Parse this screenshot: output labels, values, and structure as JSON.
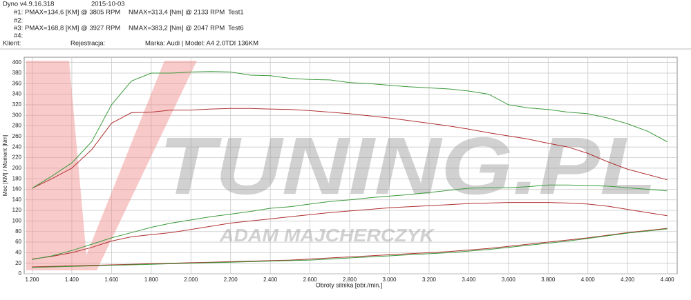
{
  "header": {
    "app": "Dyno v4.9.16.318",
    "date": "2015-10-03",
    "runs": [
      {
        "id": "#1:",
        "pmax": "PMAX=134,6 [KM] @ 3805 RPM",
        "nmax": "NMAX=313,4 [Nm] @ 2133 RPM",
        "test": "Test1"
      },
      {
        "id": "#2:"
      },
      {
        "id": "#3:",
        "pmax": "PMAX=168,8 [KM] @ 3927 RPM",
        "nmax": "NMAX=383,2 [Nm] @ 2047 RPM",
        "test": "Test6"
      },
      {
        "id": "#4:"
      }
    ],
    "client": "Klient:",
    "registration": "Rejestracja:",
    "vehicle": "Marka: Audi | Model: A4 2.0TDI 136KM"
  },
  "watermark": {
    "brand": "TUNING.PL",
    "author": "ADAM MAJCHERCZYK"
  },
  "chart_data": {
    "type": "line",
    "y_label": "Moc [KM] / Moment [Nm]",
    "x_label": "Obroty silnika [obr./min.]",
    "xlim": [
      1160,
      4450
    ],
    "ylim": [
      0,
      410
    ],
    "grid": true,
    "xticks": [
      {
        "value": 1200,
        "label": "1.200"
      },
      {
        "value": 1400,
        "label": "1.400"
      },
      {
        "value": 1600,
        "label": "1.600"
      },
      {
        "value": 1800,
        "label": "1.800"
      },
      {
        "value": 2000,
        "label": "2.000"
      },
      {
        "value": 2200,
        "label": "2.200"
      },
      {
        "value": 2400,
        "label": "2.400"
      },
      {
        "value": 2600,
        "label": "2.600"
      },
      {
        "value": 2800,
        "label": "2.800"
      },
      {
        "value": 3000,
        "label": "3.000"
      },
      {
        "value": 3200,
        "label": "3.200"
      },
      {
        "value": 3400,
        "label": "3.400"
      },
      {
        "value": 3600,
        "label": "3.600"
      },
      {
        "value": 3800,
        "label": "3.800"
      },
      {
        "value": 4000,
        "label": "4.000"
      },
      {
        "value": 4200,
        "label": "4.200"
      },
      {
        "value": 4400,
        "label": "4.400"
      }
    ],
    "yticks": [
      0,
      20,
      40,
      60,
      80,
      100,
      120,
      140,
      160,
      180,
      200,
      220,
      240,
      260,
      280,
      300,
      320,
      340,
      360,
      380,
      400
    ],
    "x": [
      1200,
      1300,
      1400,
      1500,
      1600,
      1700,
      1800,
      1900,
      2000,
      2100,
      2200,
      2300,
      2400,
      2500,
      2600,
      2700,
      2800,
      2900,
      3000,
      3100,
      3200,
      3300,
      3400,
      3500,
      3600,
      3700,
      3800,
      3900,
      4000,
      4100,
      4200,
      4300,
      4400
    ],
    "series": [
      {
        "color": "#b03030",
        "values": [
          162,
          180,
          200,
          235,
          285,
          305,
          306,
          310,
          310,
          312,
          313,
          313,
          312,
          311,
          309,
          306,
          303,
          299,
          295,
          290,
          285,
          280,
          274,
          267,
          261,
          255,
          247,
          240,
          228,
          212,
          198,
          188,
          178
        ]
      },
      {
        "color": "#3a9a3a",
        "values": [
          162,
          185,
          210,
          250,
          320,
          365,
          380,
          380,
          382,
          383,
          382,
          376,
          375,
          370,
          368,
          367,
          362,
          360,
          357,
          354,
          352,
          350,
          346,
          340,
          320,
          314,
          311,
          306,
          303,
          295,
          284,
          270,
          250
        ]
      },
      {
        "color": "#b03030",
        "values": [
          28,
          33,
          40,
          50,
          62,
          70,
          74,
          78,
          84,
          90,
          96,
          100,
          104,
          108,
          112,
          116,
          119,
          122,
          125,
          127,
          129,
          131,
          133,
          134,
          135,
          135,
          135,
          134,
          132,
          128,
          122,
          116,
          110
        ]
      },
      {
        "color": "#3a9a3a",
        "values": [
          27,
          34,
          44,
          56,
          68,
          78,
          88,
          96,
          102,
          108,
          113,
          118,
          124,
          127,
          132,
          137,
          140,
          144,
          147,
          150,
          154,
          158,
          162,
          163,
          163,
          165,
          168,
          168,
          167,
          166,
          163,
          160,
          157
        ]
      },
      {
        "color": "#b03030",
        "values": [
          13,
          14,
          15,
          16,
          17,
          18,
          19,
          20,
          21,
          22,
          23,
          24,
          25,
          26,
          28,
          30,
          32,
          34,
          36,
          38,
          40,
          42,
          45,
          48,
          52,
          56,
          60,
          64,
          68,
          73,
          78,
          82,
          86
        ]
      },
      {
        "color": "#3a9a3a",
        "values": [
          12,
          13,
          14,
          15,
          16,
          17,
          18,
          19,
          20,
          21,
          22,
          23,
          24,
          25,
          26,
          28,
          30,
          32,
          34,
          36,
          38,
          40,
          43,
          46,
          50,
          54,
          58,
          62,
          67,
          72,
          77,
          81,
          85
        ]
      }
    ]
  }
}
